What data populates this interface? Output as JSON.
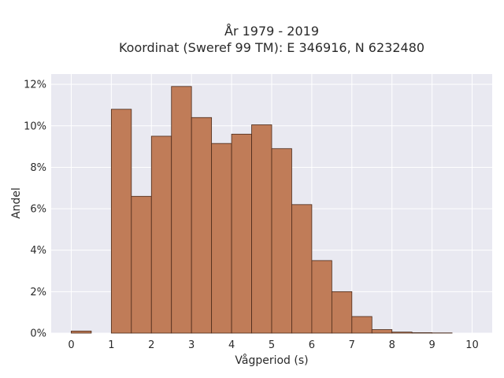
{
  "chart_data": {
    "type": "bar",
    "title_line1": "År 1979 - 2019",
    "title_line2": "Koordinat (Sweref 99 TM): E 346916, N 6232480",
    "xlabel": "Vågperiod (s)",
    "ylabel": "Andel",
    "xlim": [
      -0.5,
      10.5
    ],
    "ylim": [
      0,
      12.5
    ],
    "x_ticks": [
      0,
      1,
      2,
      3,
      4,
      5,
      6,
      7,
      8,
      9,
      10
    ],
    "y_ticks": [
      0,
      2,
      4,
      6,
      8,
      10,
      12
    ],
    "y_tick_labels": [
      "0%",
      "2%",
      "4%",
      "6%",
      "8%",
      "10%",
      "12%"
    ],
    "bin_width": 0.5,
    "bins": [
      {
        "start": 0.0,
        "value": 0.1
      },
      {
        "start": 1.0,
        "value": 10.8
      },
      {
        "start": 1.5,
        "value": 6.6
      },
      {
        "start": 2.0,
        "value": 9.5
      },
      {
        "start": 2.5,
        "value": 11.9
      },
      {
        "start": 3.0,
        "value": 10.4
      },
      {
        "start": 3.5,
        "value": 9.15
      },
      {
        "start": 4.0,
        "value": 9.6
      },
      {
        "start": 4.5,
        "value": 10.05
      },
      {
        "start": 5.0,
        "value": 8.9
      },
      {
        "start": 5.5,
        "value": 6.2
      },
      {
        "start": 6.0,
        "value": 3.5
      },
      {
        "start": 6.5,
        "value": 2.0
      },
      {
        "start": 7.0,
        "value": 0.8
      },
      {
        "start": 7.5,
        "value": 0.17
      },
      {
        "start": 8.0,
        "value": 0.05
      },
      {
        "start": 8.5,
        "value": 0.02
      },
      {
        "start": 9.0,
        "value": 0.01
      }
    ],
    "grid": true,
    "colors": {
      "bar_fill": "#c07c58",
      "bar_stroke": "#4a2a1a",
      "plot_background": "#e9e9f1",
      "grid": "#ffffff"
    }
  }
}
